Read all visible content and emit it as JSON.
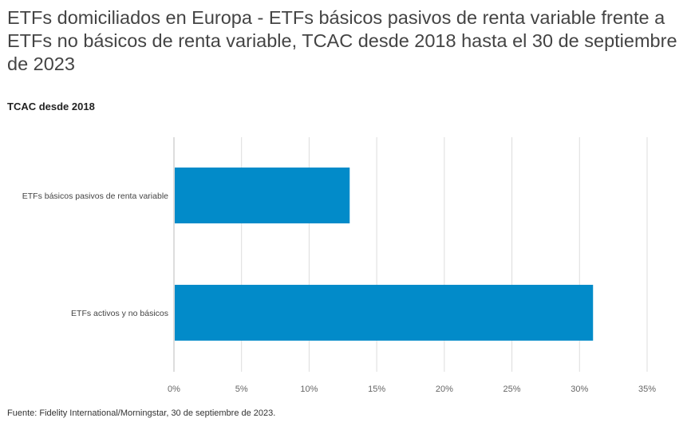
{
  "chart_data": {
    "type": "bar",
    "orientation": "horizontal",
    "title": "ETFs domiciliados en Europa - ETFs básicos pasivos de renta variable frente a ETFs no básicos de renta variable, TCAC desde 2018 hasta el 30 de septiembre de 2023",
    "subtitle": "TCAC desde 2018",
    "categories": [
      "ETFs básicos pasivos de renta variable",
      "ETFs activos y no básicos"
    ],
    "values": [
      13,
      31
    ],
    "xlim": [
      0,
      35
    ],
    "xticks": [
      0,
      5,
      10,
      15,
      20,
      25,
      30,
      35
    ],
    "xtick_labels": [
      "0%",
      "5%",
      "10%",
      "15%",
      "20%",
      "25%",
      "30%",
      "35%"
    ],
    "xlabel": "",
    "ylabel": "",
    "grid": true,
    "bar_color": "#028BC9",
    "source": "Fuente: Fidelity International/Morningstar, 30 de septiembre de 2023."
  }
}
